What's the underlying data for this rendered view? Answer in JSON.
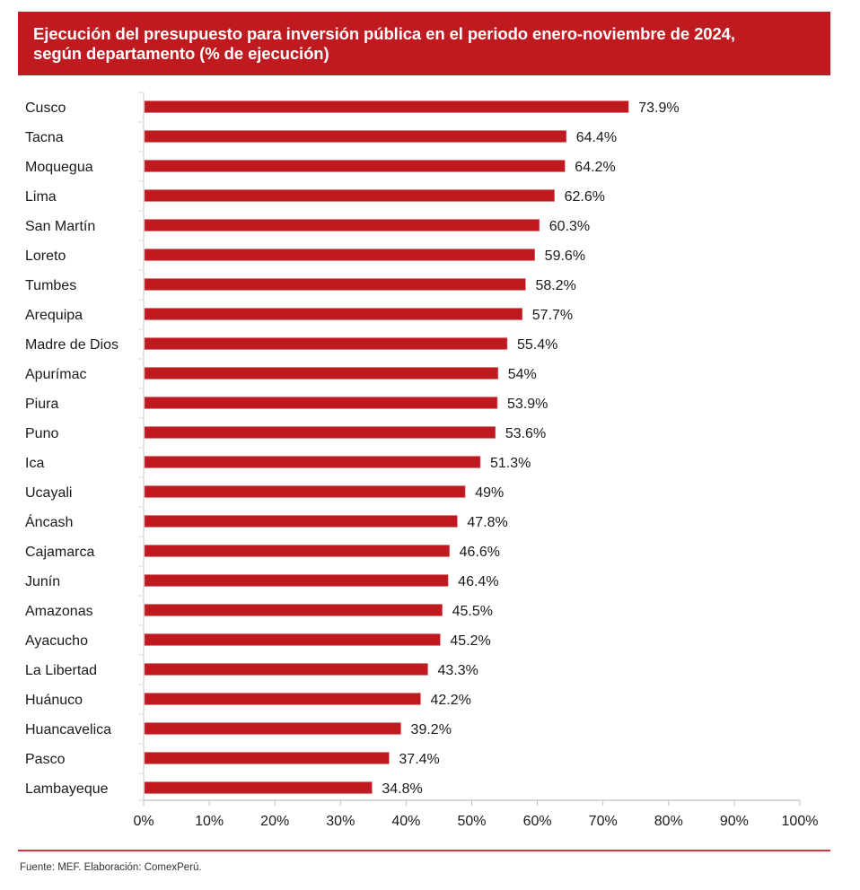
{
  "header": {
    "title_line1": "Ejecución del presupuesto para inversión pública en el periodo enero-noviembre de 2024,",
    "title_line2": "según departamento (% de ejecución)"
  },
  "footer": {
    "source": "Fuente: MEF. Elaboración: ComexPerú."
  },
  "colors": {
    "header_bg": "#be1a1f",
    "bar": "#be1a1f",
    "divider": "#d6333a"
  },
  "chart_data": {
    "type": "bar",
    "orientation": "horizontal",
    "title": "Ejecución del presupuesto para inversión pública en el periodo enero-noviembre de 2024, según departamento (% de ejecución)",
    "xlabel": "",
    "ylabel": "",
    "xlim": [
      0,
      100
    ],
    "x_ticks": [
      "0%",
      "10%",
      "20%",
      "30%",
      "40%",
      "50%",
      "60%",
      "70%",
      "80%",
      "90%",
      "100%"
    ],
    "grid": false,
    "legend": "none",
    "categories": [
      "Cusco",
      "Tacna",
      "Moquegua",
      "Lima",
      "San Martín",
      "Loreto",
      "Tumbes",
      "Arequipa",
      "Madre de Dios",
      "Apurímac",
      "Piura",
      "Puno",
      "Ica",
      "Ucayali",
      "Áncash",
      "Cajamarca",
      "Junín",
      "Amazonas",
      "Ayacucho",
      "La Libertad",
      "Huánuco",
      "Huancavelica",
      "Pasco",
      "Lambayeque"
    ],
    "values": [
      73.9,
      64.4,
      64.2,
      62.6,
      60.3,
      59.6,
      58.2,
      57.7,
      55.4,
      54,
      53.9,
      53.6,
      51.3,
      49,
      47.8,
      46.6,
      46.4,
      45.5,
      45.2,
      43.3,
      42.2,
      39.2,
      37.4,
      34.8
    ],
    "data_labels": [
      "73.9%",
      "64.4%",
      "64.2%",
      "62.6%",
      "60.3%",
      "59.6%",
      "58.2%",
      "57.7%",
      "55.4%",
      "54%",
      "53.9%",
      "53.6%",
      "51.3%",
      "49%",
      "47.8%",
      "46.6%",
      "46.4%",
      "45.5%",
      "45.2%",
      "43.3%",
      "42.2%",
      "39.2%",
      "37.4%",
      "34.8%"
    ],
    "source": "Fuente: MEF. Elaboración: ComexPerú."
  }
}
